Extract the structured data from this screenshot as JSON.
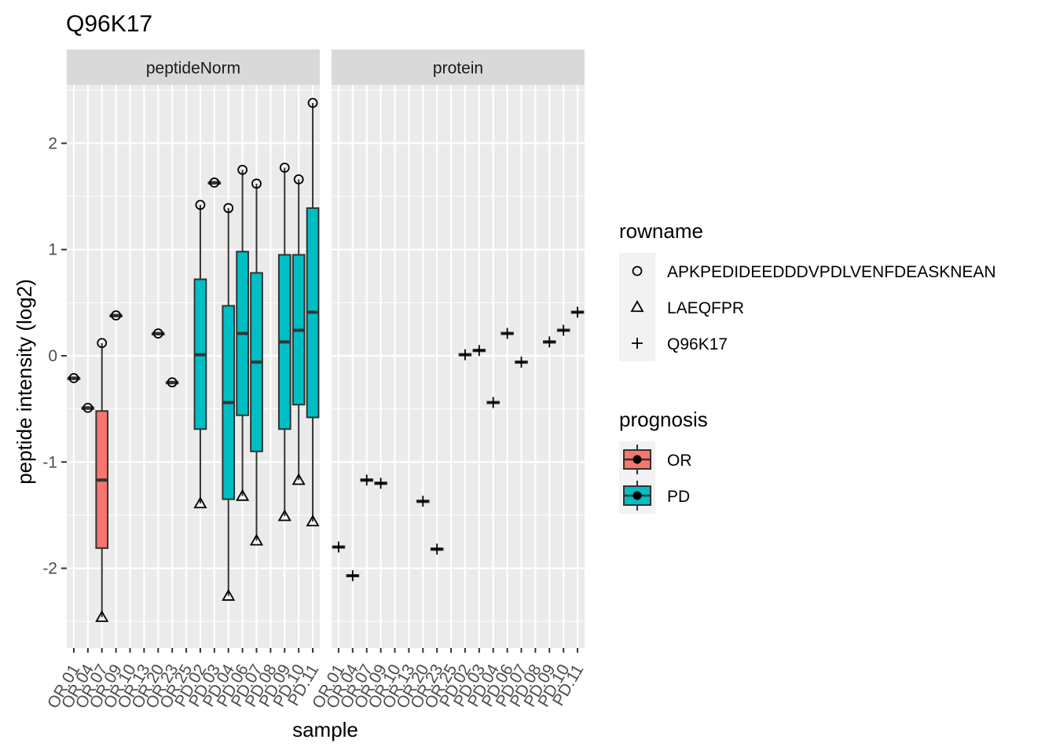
{
  "chart_data": {
    "type": "boxplot",
    "title": "Q96K17",
    "xlabel": "sample",
    "ylabel": "peptide intensity (log2)",
    "ylim": [
      -2.75,
      2.55
    ],
    "yticks": [
      -2,
      -1,
      0,
      1,
      2
    ],
    "samples": [
      "OR.01",
      "OR.04",
      "OR.07",
      "OR.09",
      "OR.10",
      "OR.13",
      "OR.20",
      "OR.23",
      "OR.25",
      "PD.02",
      "PD.03",
      "PD.04",
      "PD.06",
      "PD.07",
      "PD.08",
      "PD.09",
      "PD.10",
      "PD.11"
    ],
    "prognosis": [
      "OR",
      "OR",
      "OR",
      "OR",
      "OR",
      "OR",
      "OR",
      "OR",
      "OR",
      "PD",
      "PD",
      "PD",
      "PD",
      "PD",
      "PD",
      "PD",
      "PD",
      "PD"
    ],
    "grid": true,
    "facets": [
      {
        "label": "peptideNorm",
        "boxes": [
          {
            "sample": "OR.01",
            "q1": -0.21,
            "median": -0.21,
            "q3": -0.21,
            "lower": -0.21,
            "upper": -0.21
          },
          {
            "sample": "OR.04",
            "q1": -0.49,
            "median": -0.49,
            "q3": -0.49,
            "lower": -0.49,
            "upper": -0.49
          },
          {
            "sample": "OR.07",
            "q1": -1.81,
            "median": -1.17,
            "q3": -0.52,
            "lower": -2.46,
            "upper": 0.12
          },
          {
            "sample": "OR.09",
            "q1": 0.38,
            "median": 0.38,
            "q3": 0.38,
            "lower": 0.38,
            "upper": 0.38
          },
          {
            "sample": "OR.20",
            "q1": 0.21,
            "median": 0.21,
            "q3": 0.21,
            "lower": 0.21,
            "upper": 0.21
          },
          {
            "sample": "OR.23",
            "q1": -0.25,
            "median": -0.25,
            "q3": -0.25,
            "lower": -0.25,
            "upper": -0.25
          },
          {
            "sample": "PD.02",
            "q1": -0.69,
            "median": 0.01,
            "q3": 0.72,
            "lower": -1.39,
            "upper": 1.42
          },
          {
            "sample": "PD.03",
            "q1": 1.63,
            "median": 1.63,
            "q3": 1.63,
            "lower": 1.63,
            "upper": 1.63
          },
          {
            "sample": "PD.04",
            "q1": -1.35,
            "median": -0.44,
            "q3": 0.47,
            "lower": -2.26,
            "upper": 1.39
          },
          {
            "sample": "PD.06",
            "q1": -0.56,
            "median": 0.21,
            "q3": 0.98,
            "lower": -1.32,
            "upper": 1.75
          },
          {
            "sample": "PD.07",
            "q1": -0.9,
            "median": -0.06,
            "q3": 0.78,
            "lower": -1.74,
            "upper": 1.62
          },
          {
            "sample": "PD.09",
            "q1": -0.69,
            "median": 0.13,
            "q3": 0.95,
            "lower": -1.51,
            "upper": 1.77
          },
          {
            "sample": "PD.10",
            "q1": -0.46,
            "median": 0.24,
            "q3": 0.95,
            "lower": -1.17,
            "upper": 1.66
          },
          {
            "sample": "PD.11",
            "q1": -0.58,
            "median": 0.41,
            "q3": 1.39,
            "lower": -1.56,
            "upper": 2.38
          }
        ],
        "points": [
          {
            "sample": "OR.01",
            "shape": "APKPEDIDEEDDDVPDLVENFDEASKNEAN",
            "y": -0.21
          },
          {
            "sample": "OR.04",
            "shape": "APKPEDIDEEDDDVPDLVENFDEASKNEAN",
            "y": -0.49
          },
          {
            "sample": "OR.07",
            "shape": "APKPEDIDEEDDDVPDLVENFDEASKNEAN",
            "y": 0.12
          },
          {
            "sample": "OR.07",
            "shape": "LAEQFPR",
            "y": -2.46
          },
          {
            "sample": "OR.09",
            "shape": "APKPEDIDEEDDDVPDLVENFDEASKNEAN",
            "y": 0.38
          },
          {
            "sample": "OR.20",
            "shape": "APKPEDIDEEDDDVPDLVENFDEASKNEAN",
            "y": 0.21
          },
          {
            "sample": "OR.23",
            "shape": "APKPEDIDEEDDDVPDLVENFDEASKNEAN",
            "y": -0.25
          },
          {
            "sample": "PD.02",
            "shape": "APKPEDIDEEDDDVPDLVENFDEASKNEAN",
            "y": 1.42
          },
          {
            "sample": "PD.02",
            "shape": "LAEQFPR",
            "y": -1.39
          },
          {
            "sample": "PD.03",
            "shape": "APKPEDIDEEDDDVPDLVENFDEASKNEAN",
            "y": 1.63
          },
          {
            "sample": "PD.04",
            "shape": "APKPEDIDEEDDDVPDLVENFDEASKNEAN",
            "y": 1.39
          },
          {
            "sample": "PD.04",
            "shape": "LAEQFPR",
            "y": -2.26
          },
          {
            "sample": "PD.06",
            "shape": "APKPEDIDEEDDDVPDLVENFDEASKNEAN",
            "y": 1.75
          },
          {
            "sample": "PD.06",
            "shape": "LAEQFPR",
            "y": -1.32
          },
          {
            "sample": "PD.07",
            "shape": "APKPEDIDEEDDDVPDLVENFDEASKNEAN",
            "y": 1.62
          },
          {
            "sample": "PD.07",
            "shape": "LAEQFPR",
            "y": -1.74
          },
          {
            "sample": "PD.09",
            "shape": "APKPEDIDEEDDDVPDLVENFDEASKNEAN",
            "y": 1.77
          },
          {
            "sample": "PD.09",
            "shape": "LAEQFPR",
            "y": -1.51
          },
          {
            "sample": "PD.10",
            "shape": "APKPEDIDEEDDDVPDLVENFDEASKNEAN",
            "y": 1.66
          },
          {
            "sample": "PD.10",
            "shape": "LAEQFPR",
            "y": -1.17
          },
          {
            "sample": "PD.11",
            "shape": "APKPEDIDEEDDDVPDLVENFDEASKNEAN",
            "y": 2.38
          },
          {
            "sample": "PD.11",
            "shape": "LAEQFPR",
            "y": -1.56
          }
        ]
      },
      {
        "label": "protein",
        "boxes": [
          {
            "sample": "OR.01",
            "value": -1.8
          },
          {
            "sample": "OR.04",
            "value": -2.07
          },
          {
            "sample": "OR.07",
            "value": -1.17
          },
          {
            "sample": "OR.09",
            "value": -1.2
          },
          {
            "sample": "OR.20",
            "value": -1.37
          },
          {
            "sample": "OR.23",
            "value": -1.82
          },
          {
            "sample": "PD.02",
            "value": 0.01
          },
          {
            "sample": "PD.03",
            "value": 0.05
          },
          {
            "sample": "PD.04",
            "value": -0.44
          },
          {
            "sample": "PD.06",
            "value": 0.21
          },
          {
            "sample": "PD.07",
            "value": -0.06
          },
          {
            "sample": "PD.09",
            "value": 0.13
          },
          {
            "sample": "PD.10",
            "value": 0.24
          },
          {
            "sample": "PD.11",
            "value": 0.41
          }
        ],
        "points": [
          {
            "sample": "OR.01",
            "shape": "Q96K17",
            "y": -1.8
          },
          {
            "sample": "OR.04",
            "shape": "Q96K17",
            "y": -2.07
          },
          {
            "sample": "OR.07",
            "shape": "Q96K17",
            "y": -1.17
          },
          {
            "sample": "OR.09",
            "shape": "Q96K17",
            "y": -1.2
          },
          {
            "sample": "OR.20",
            "shape": "Q96K17",
            "y": -1.37
          },
          {
            "sample": "OR.23",
            "shape": "Q96K17",
            "y": -1.82
          },
          {
            "sample": "PD.02",
            "shape": "Q96K17",
            "y": 0.01
          },
          {
            "sample": "PD.03",
            "shape": "Q96K17",
            "y": 0.05
          },
          {
            "sample": "PD.04",
            "shape": "Q96K17",
            "y": -0.44
          },
          {
            "sample": "PD.06",
            "shape": "Q96K17",
            "y": 0.21
          },
          {
            "sample": "PD.07",
            "shape": "Q96K17",
            "y": -0.06
          },
          {
            "sample": "PD.09",
            "shape": "Q96K17",
            "y": 0.13
          },
          {
            "sample": "PD.10",
            "shape": "Q96K17",
            "y": 0.24
          },
          {
            "sample": "PD.11",
            "shape": "Q96K17",
            "y": 0.41
          }
        ]
      }
    ],
    "legend_shape": {
      "title": "rowname",
      "placement": "right",
      "items": [
        {
          "label": "APKPEDIDEEDDDVPDLVENFDEASKNEAN",
          "shape": "circle"
        },
        {
          "label": "LAEQFPR",
          "shape": "triangle"
        },
        {
          "label": "Q96K17",
          "shape": "plus"
        }
      ]
    },
    "legend_fill": {
      "title": "prognosis",
      "placement": "right",
      "items": [
        {
          "label": "OR",
          "color": "#F8766D"
        },
        {
          "label": "PD",
          "color": "#00BFC4"
        }
      ]
    }
  }
}
